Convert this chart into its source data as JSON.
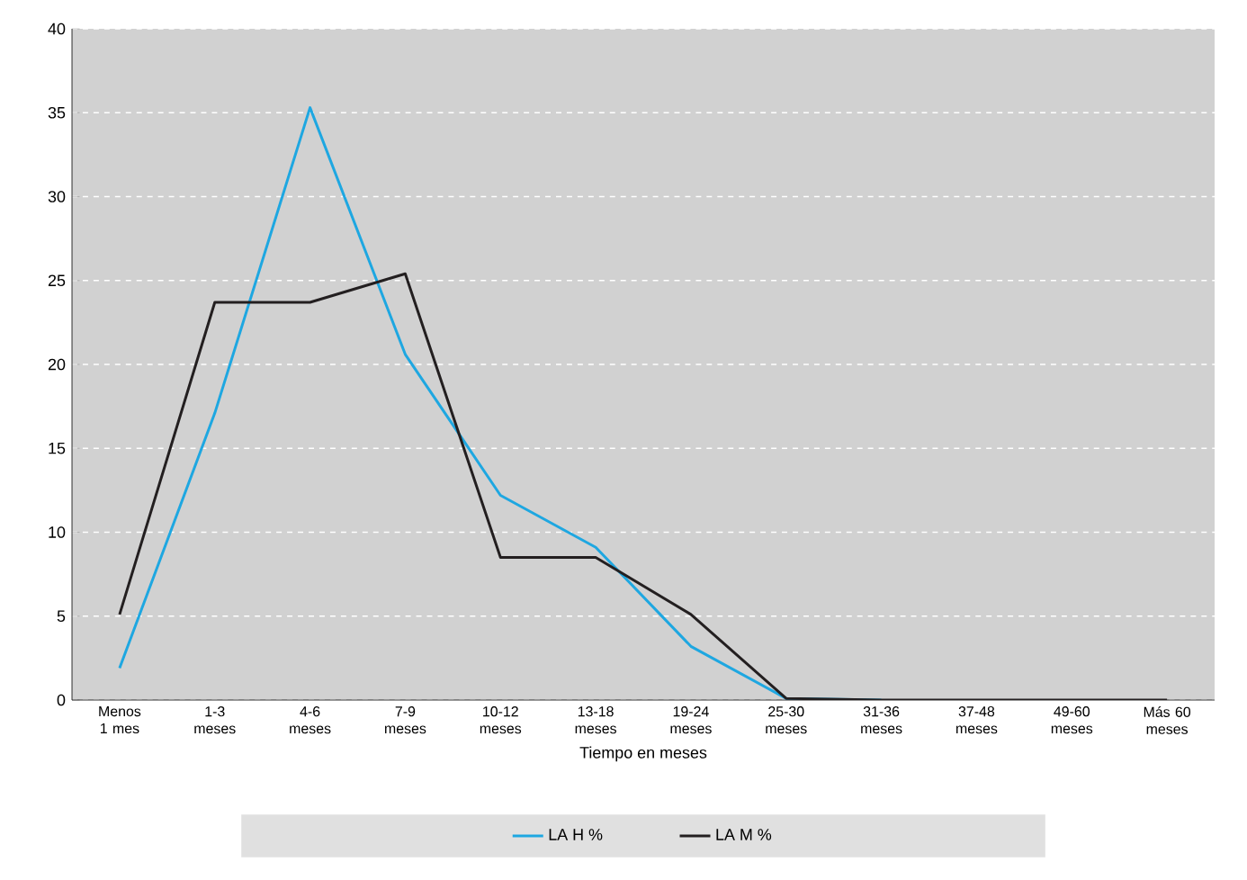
{
  "chart_data": {
    "type": "line",
    "xlabel": "Tiempo en meses",
    "categories": [
      "Menos 1 mes",
      "1-3 meses",
      "4-6 meses",
      "7-9 meses",
      "10-12 meses",
      "13-18 meses",
      "19-24 meses",
      "25-30 meses",
      "31-36 meses",
      "37-48 meses",
      "49-60 meses",
      "Más 60 meses"
    ],
    "series": [
      {
        "name": "LA H %",
        "color": "#1ea7e1",
        "values": [
          1.9,
          17.1,
          35.3,
          20.6,
          12.2,
          9.1,
          3.2,
          0.1,
          0,
          null,
          null,
          null
        ]
      },
      {
        "name": "LA M %",
        "color": "#231f20",
        "values": [
          5.1,
          23.7,
          23.7,
          25.4,
          8.5,
          8.5,
          5.1,
          0.1,
          0,
          0,
          0,
          0
        ]
      }
    ],
    "ylim": [
      0,
      40
    ],
    "yticks": [
      0,
      5,
      10,
      15,
      20,
      25,
      30,
      35,
      40
    ],
    "grid": "y",
    "legend": "bottom",
    "marker": "none",
    "line_style": "solid"
  }
}
